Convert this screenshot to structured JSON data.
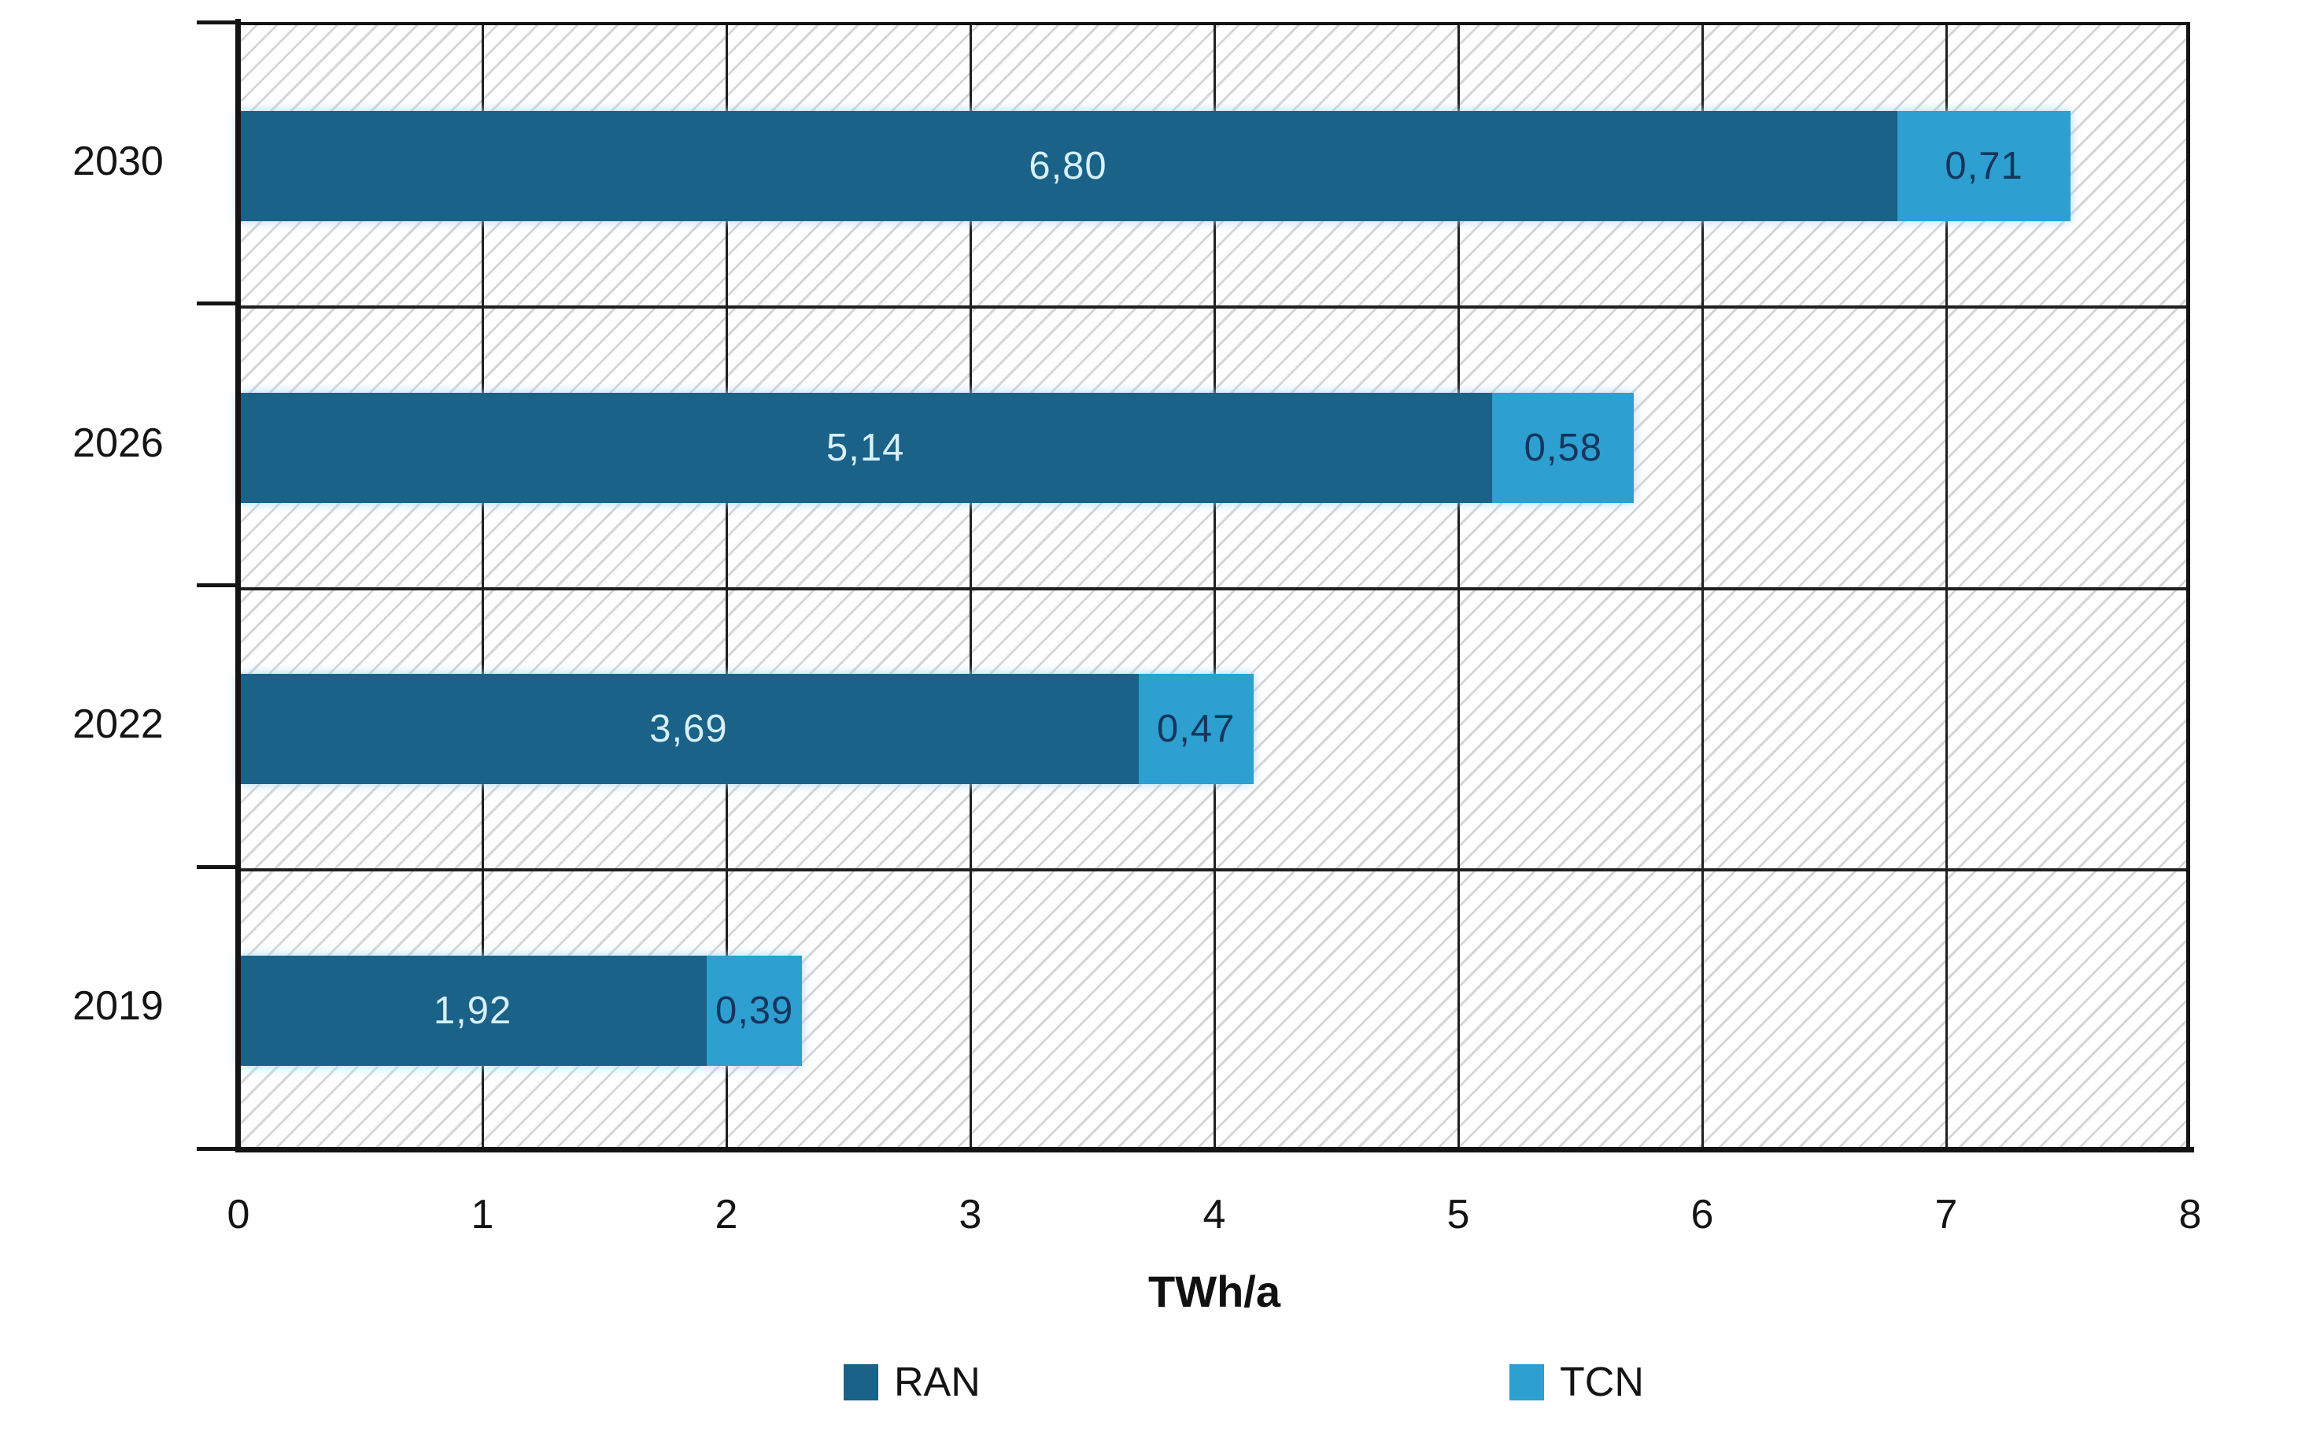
{
  "chart_data": {
    "type": "bar",
    "orientation": "horizontal",
    "stacked": true,
    "xlabel": "TWh/a",
    "xlim": [
      0,
      8
    ],
    "x_ticks": [
      "0",
      "1",
      "2",
      "3",
      "4",
      "5",
      "6",
      "7",
      "8"
    ],
    "grid": true,
    "legend_position": "bottom",
    "categories": [
      "2030",
      "2026",
      "2022",
      "2019"
    ],
    "series": [
      {
        "name": "RAN",
        "color": "#1A6287",
        "label_color": "#D8F0FA",
        "values": [
          6.8,
          5.14,
          3.69,
          1.92
        ]
      },
      {
        "name": "TCN",
        "color": "#2D9FD1",
        "label_color": "#16365C",
        "values": [
          0.71,
          0.58,
          0.47,
          0.39
        ]
      }
    ],
    "rows": [
      {
        "year": "2030",
        "ran": 6.8,
        "tcn": 0.71,
        "ran_label": "6,80",
        "tcn_label": "0,71"
      },
      {
        "year": "2026",
        "ran": 5.14,
        "tcn": 0.58,
        "ran_label": "5,14",
        "tcn_label": "0,58"
      },
      {
        "year": "2022",
        "ran": 3.69,
        "tcn": 0.47,
        "ran_label": "3,69",
        "tcn_label": "0,47"
      },
      {
        "year": "2019",
        "ran": 1.92,
        "tcn": 0.39,
        "ran_label": "1,92",
        "tcn_label": "0,39"
      }
    ]
  }
}
